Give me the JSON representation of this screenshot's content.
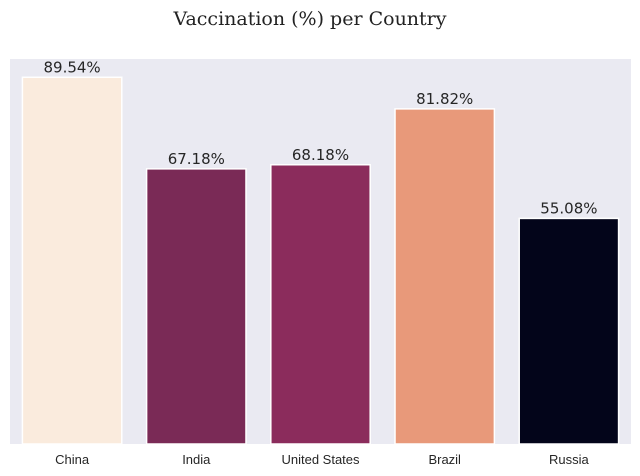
{
  "chart_data": {
    "type": "bar",
    "title": "Vaccination (%) per Country",
    "xlabel": "",
    "ylabel": "",
    "categories": [
      "China",
      "India",
      "United States",
      "Brazil",
      "Russia"
    ],
    "values": [
      89.54,
      67.18,
      68.18,
      81.82,
      55.08
    ],
    "data_labels": [
      "89.54%",
      "67.18%",
      "68.18%",
      "81.82%",
      "55.08%"
    ],
    "bar_colors": [
      "#faebdd",
      "#7a2a56",
      "#8b2c5c",
      "#e8997a",
      "#03051a"
    ],
    "ylim": [
      0,
      94
    ],
    "grid": false,
    "legend": "none",
    "background_color": "#eaeaf2"
  }
}
